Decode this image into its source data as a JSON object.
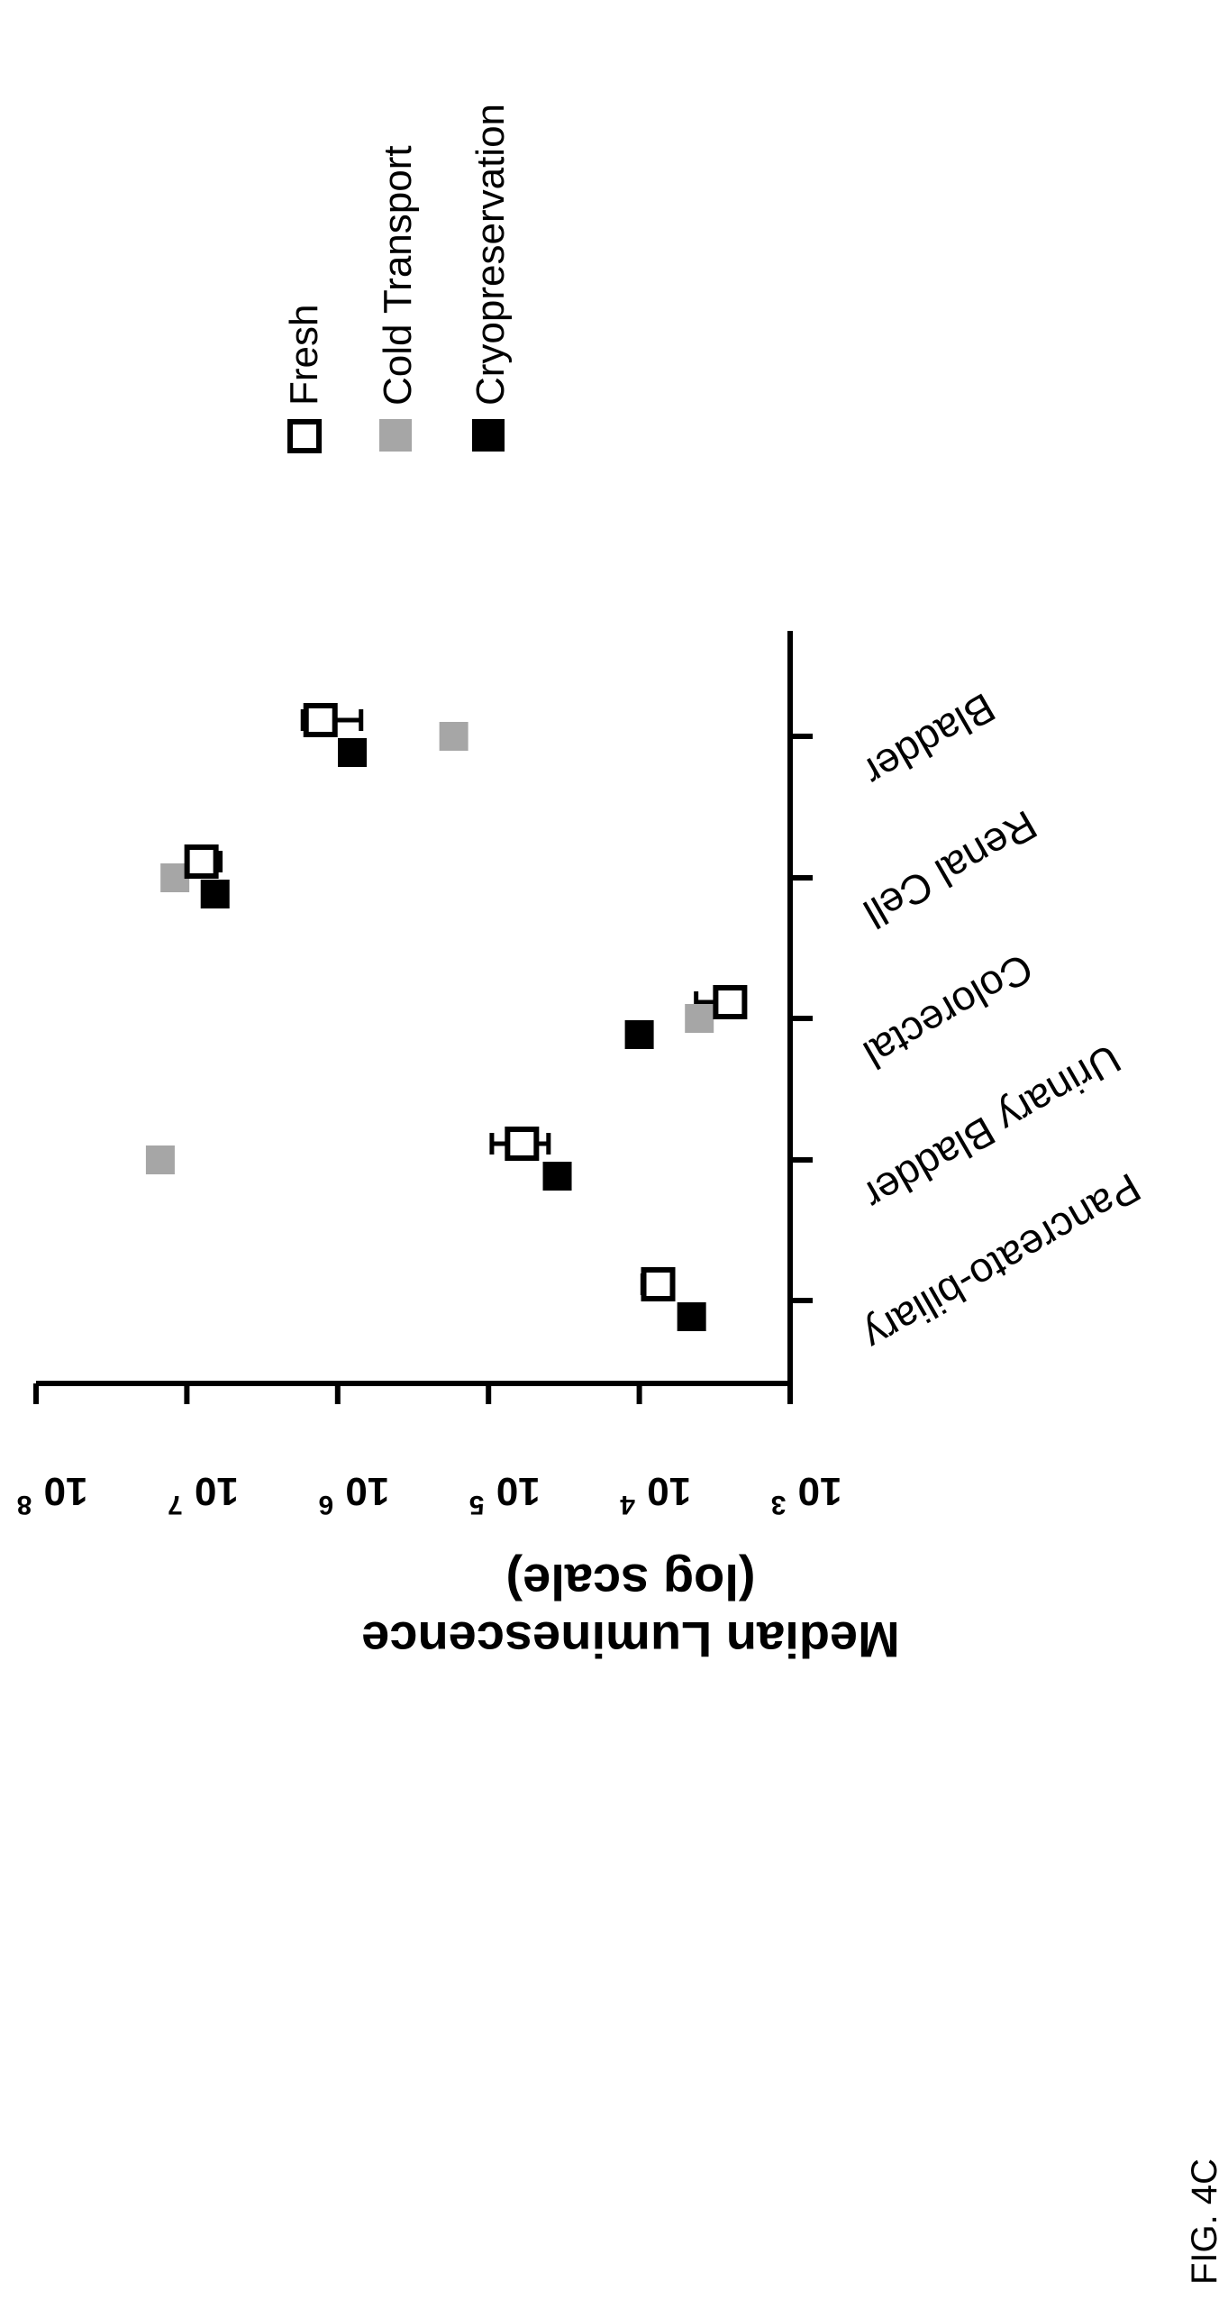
{
  "figure_label": "FIG. 4C",
  "chart_data": {
    "type": "scatter",
    "orientation": "rotated-90-ccw",
    "ylabel": [
      "Median Luminescence",
      "(log scale)"
    ],
    "yscale": "log",
    "ylim": [
      1000,
      100000000
    ],
    "yticks": [
      {
        "base": "10",
        "exp": "3",
        "value": 1000
      },
      {
        "base": "10",
        "exp": "4",
        "value": 10000
      },
      {
        "base": "10",
        "exp": "5",
        "value": 100000
      },
      {
        "base": "10",
        "exp": "6",
        "value": 1000000
      },
      {
        "base": "10",
        "exp": "7",
        "value": 10000000
      },
      {
        "base": "10",
        "exp": "8",
        "value": 100000000
      }
    ],
    "categories": [
      "Pancreato-biliary",
      "Urinary Bladder",
      "Colorectal",
      "Renal Cell",
      "Bladder"
    ],
    "legend_position": "top-right",
    "series": [
      {
        "name": "Fresh",
        "style": "open-square",
        "color": "#000000",
        "values": [
          7500,
          60000,
          2500,
          8000000,
          1300000
        ],
        "err": [
          [
            7500,
            9500
          ],
          [
            40000,
            95000
          ],
          [
            2500,
            4200
          ],
          [
            6000000,
            9500000
          ],
          [
            700000,
            1700000
          ]
        ]
      },
      {
        "name": "Cold Transport",
        "style": "filled-square",
        "color": "#a6a6a6",
        "values": [
          null,
          15000000,
          4000,
          12000000,
          170000
        ]
      },
      {
        "name": "Cryopreservation",
        "style": "filled-square",
        "color": "#000000",
        "values": [
          4500,
          35000,
          10000,
          6500000,
          800000
        ]
      }
    ]
  }
}
